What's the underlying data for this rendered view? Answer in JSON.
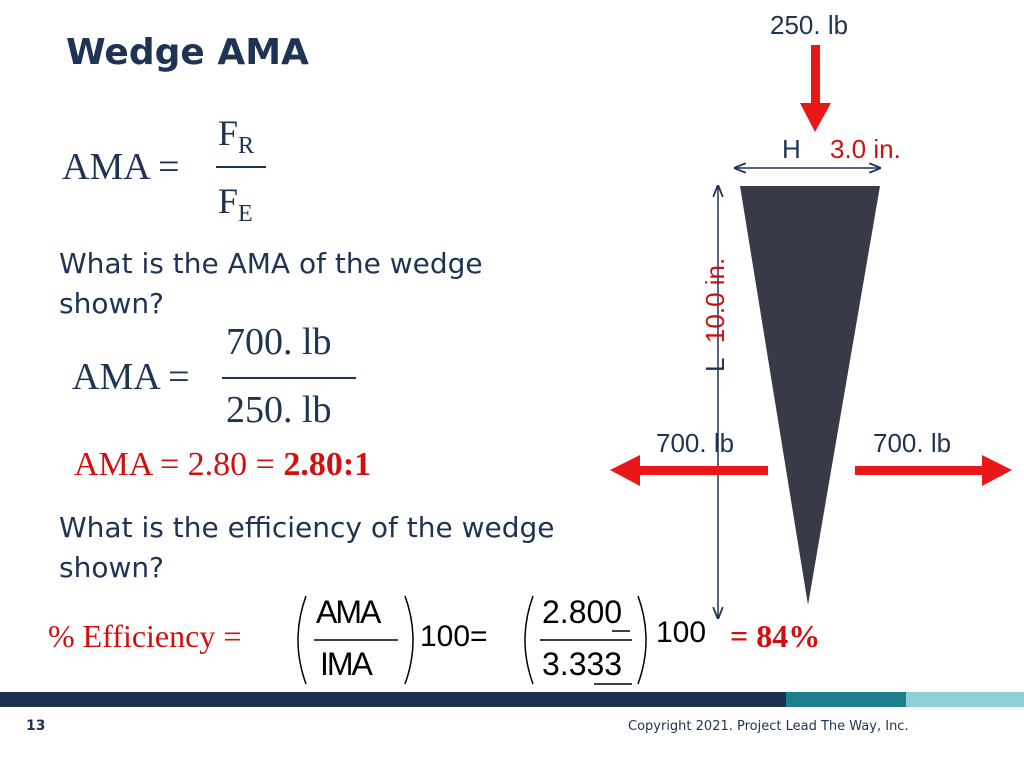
{
  "header": {
    "title": "Wedge AMA"
  },
  "formula_definition": {
    "lhs": "AMA =",
    "numerator": "F",
    "numerator_sub": "R",
    "denominator": "F",
    "denominator_sub": "E"
  },
  "question_ama": [
    "What is the AMA of the wedge",
    "shown?"
  ],
  "formula_ama": {
    "lhs": "AMA =",
    "numerator": "700. lb",
    "denominator": "250. lb"
  },
  "result_ama": {
    "text": "AMA = 2.80 =",
    "answer": "2.80:1"
  },
  "question_efficiency": [
    "What is the efficiency of the wedge",
    "shown?"
  ],
  "formula_efficiency": {
    "lhs": "% Efficiency =",
    "numerator": "AMA",
    "denominator": "IMA",
    "factor": "100=",
    "numerator_value": "2.800",
    "denominator_value": "3.333",
    "factor_value": "100",
    "answer": "= 84%"
  },
  "diagram": {
    "input_force": "250. lb",
    "height_letter": "H",
    "height_value": "3.0 in.",
    "length_letter": "L",
    "length_value": "10.0 in.",
    "output_force_left": "700. lb",
    "output_force_right": "700. lb"
  },
  "footer": {
    "page_number": "13",
    "copyright": "Copyright 2021. Project Lead The Way, Inc."
  }
}
